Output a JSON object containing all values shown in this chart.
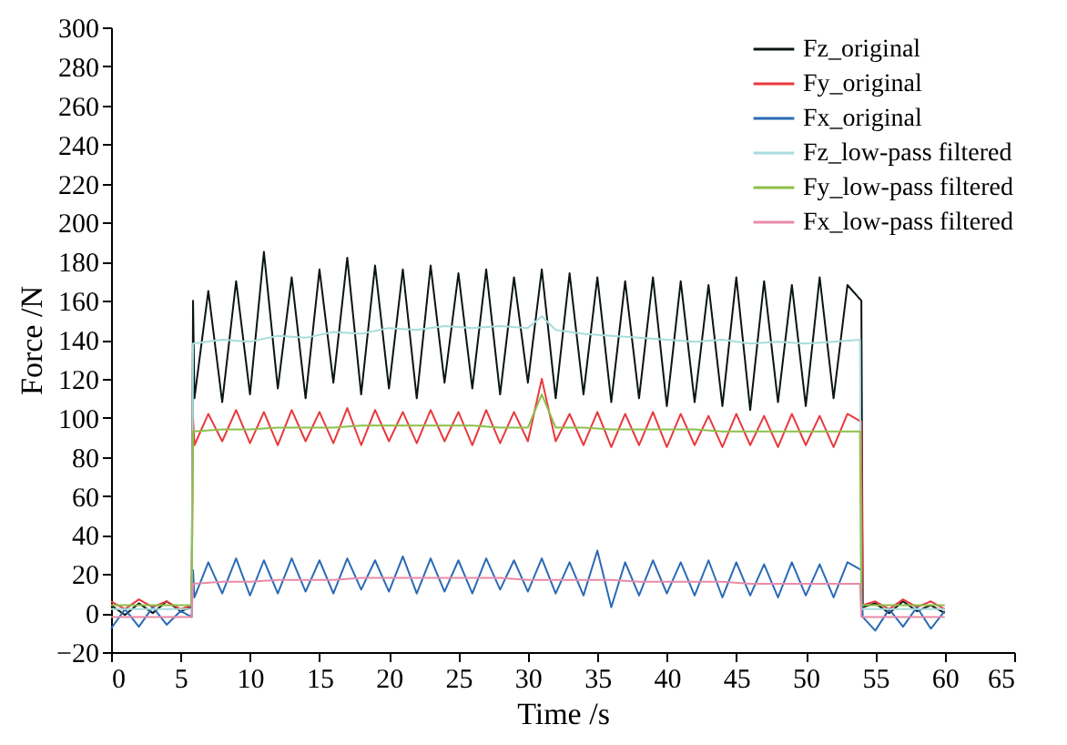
{
  "chart_data": {
    "type": "line",
    "xlabel": "Time /s",
    "ylabel": "Force /N",
    "xlim": [
      0,
      65
    ],
    "xticks": [
      0,
      5,
      10,
      15,
      20,
      25,
      30,
      35,
      40,
      45,
      50,
      55,
      60,
      65
    ],
    "ylim": [
      -20,
      300
    ],
    "yticks": [
      -20,
      0,
      20,
      40,
      60,
      80,
      100,
      120,
      140,
      160,
      180,
      200,
      220,
      240,
      260,
      280,
      300
    ],
    "grid": false,
    "legend": "top right",
    "marker": "none",
    "line_style": "solid",
    "series": [
      {
        "name": "Fz_original",
        "color": "#0a1414",
        "x": [
          0,
          1,
          2,
          3,
          4,
          5,
          5.8,
          5.9,
          6,
          7,
          8,
          9,
          10,
          11,
          12,
          13,
          14,
          15,
          16,
          17,
          18,
          19,
          20,
          21,
          22,
          23,
          24,
          25,
          26,
          27,
          28,
          29,
          30,
          31,
          32,
          33,
          34,
          35,
          36,
          37,
          38,
          39,
          40,
          41,
          42,
          43,
          44,
          45,
          46,
          47,
          48,
          49,
          50,
          51,
          52,
          53,
          54,
          54.1,
          55,
          56,
          57,
          58,
          59,
          60
        ],
        "values": [
          4,
          -1,
          5,
          0,
          6,
          1,
          3,
          160,
          110,
          165,
          108,
          170,
          112,
          185,
          115,
          172,
          110,
          176,
          118,
          182,
          112,
          178,
          115,
          176,
          110,
          178,
          118,
          174,
          115,
          176,
          112,
          172,
          118,
          176,
          110,
          174,
          112,
          172,
          108,
          170,
          110,
          172,
          106,
          170,
          108,
          168,
          106,
          172,
          104,
          170,
          108,
          168,
          106,
          172,
          110,
          168,
          160,
          3,
          5,
          0,
          6,
          1,
          4,
          0
        ]
      },
      {
        "name": "Fy_original",
        "color": "#e8393c",
        "x": [
          0,
          1,
          2,
          3,
          4,
          5,
          5.8,
          5.9,
          6,
          7,
          8,
          9,
          10,
          11,
          12,
          13,
          14,
          15,
          16,
          17,
          18,
          19,
          20,
          21,
          22,
          23,
          24,
          25,
          26,
          27,
          28,
          29,
          30,
          31,
          32,
          33,
          34,
          35,
          36,
          37,
          38,
          39,
          40,
          41,
          42,
          43,
          44,
          45,
          46,
          47,
          48,
          49,
          50,
          51,
          52,
          53,
          54,
          54.1,
          55,
          56,
          57,
          58,
          59,
          60
        ],
        "values": [
          6,
          2,
          7,
          3,
          6,
          2,
          4,
          100,
          86,
          102,
          88,
          104,
          87,
          103,
          86,
          104,
          88,
          103,
          87,
          105,
          86,
          104,
          88,
          103,
          87,
          104,
          88,
          103,
          86,
          104,
          87,
          103,
          88,
          120,
          88,
          102,
          86,
          103,
          85,
          102,
          86,
          103,
          85,
          102,
          86,
          101,
          85,
          102,
          86,
          101,
          85,
          102,
          86,
          101,
          85,
          102,
          98,
          4,
          6,
          2,
          7,
          3,
          6,
          2
        ]
      },
      {
        "name": "Fx_original",
        "color": "#2a6ab5",
        "x": [
          0,
          1,
          2,
          3,
          4,
          5,
          5.8,
          5.9,
          6,
          7,
          8,
          9,
          10,
          11,
          12,
          13,
          14,
          15,
          16,
          17,
          18,
          19,
          20,
          21,
          22,
          23,
          24,
          25,
          26,
          27,
          28,
          29,
          30,
          31,
          32,
          33,
          34,
          35,
          36,
          37,
          38,
          39,
          40,
          41,
          42,
          43,
          44,
          45,
          46,
          47,
          48,
          49,
          50,
          51,
          52,
          53,
          54,
          54.1,
          55,
          56,
          57,
          58,
          59,
          60
        ],
        "values": [
          -8,
          2,
          -7,
          3,
          -6,
          1,
          -2,
          22,
          8,
          26,
          10,
          28,
          9,
          27,
          10,
          28,
          11,
          27,
          10,
          28,
          12,
          27,
          11,
          29,
          10,
          28,
          11,
          27,
          10,
          28,
          12,
          27,
          11,
          28,
          10,
          26,
          9,
          32,
          3,
          26,
          9,
          27,
          10,
          26,
          9,
          27,
          8,
          26,
          9,
          25,
          8,
          26,
          9,
          25,
          8,
          26,
          22,
          -2,
          -9,
          2,
          -7,
          3,
          -8,
          1
        ]
      },
      {
        "name": "Fz_low-pass filtered",
        "color": "#a8dcdc",
        "x": [
          0,
          2,
          4,
          5.8,
          5.9,
          8,
          10,
          12,
          14,
          16,
          18,
          20,
          22,
          24,
          26,
          28,
          30,
          31,
          32,
          34,
          36,
          38,
          40,
          42,
          44,
          46,
          48,
          50,
          52,
          53.9,
          54,
          56,
          58,
          60
        ],
        "values": [
          2,
          2,
          2,
          2,
          138,
          140,
          139,
          142,
          141,
          144,
          143,
          146,
          145,
          147,
          146,
          147,
          146,
          152,
          145,
          143,
          142,
          141,
          140,
          139,
          140,
          138,
          139,
          138,
          139,
          140,
          2,
          2,
          2,
          2
        ]
      },
      {
        "name": "Fy_low-pass filtered",
        "color": "#8cc04a",
        "x": [
          0,
          2,
          4,
          5.8,
          5.9,
          8,
          10,
          12,
          14,
          16,
          18,
          20,
          22,
          24,
          26,
          28,
          30,
          31,
          32,
          34,
          36,
          38,
          40,
          42,
          44,
          46,
          48,
          50,
          52,
          53.9,
          54,
          56,
          58,
          60
        ],
        "values": [
          4,
          4,
          4,
          4,
          93,
          94,
          94,
          95,
          95,
          95,
          96,
          96,
          96,
          96,
          96,
          95,
          95,
          112,
          95,
          95,
          94,
          94,
          94,
          94,
          93,
          93,
          93,
          93,
          93,
          93,
          4,
          4,
          4,
          4
        ]
      },
      {
        "name": "Fx_low-pass filtered",
        "color": "#e88aa8",
        "x": [
          0,
          2,
          4,
          5.8,
          5.9,
          8,
          10,
          12,
          14,
          16,
          18,
          20,
          22,
          24,
          26,
          28,
          30,
          31,
          32,
          34,
          36,
          38,
          40,
          42,
          44,
          46,
          48,
          50,
          52,
          53.9,
          54,
          56,
          58,
          60
        ],
        "values": [
          -2,
          -2,
          -2,
          -2,
          15,
          16,
          16,
          17,
          17,
          17,
          18,
          18,
          18,
          18,
          18,
          18,
          17,
          17,
          17,
          17,
          17,
          16,
          16,
          16,
          16,
          15,
          15,
          15,
          15,
          15,
          -2,
          -2,
          -2,
          -2
        ]
      }
    ]
  }
}
